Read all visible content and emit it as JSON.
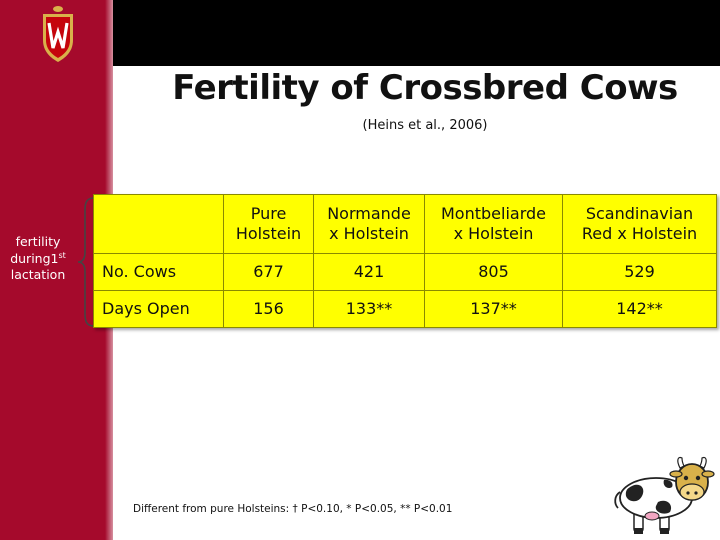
{
  "slide": {
    "title": "Fertility of Crossbred Cows",
    "subtitle": "(Heins et al., 2006)",
    "side_label": {
      "line1": "fertility",
      "line2_base": "during1",
      "line2_sup": "st",
      "line3": "lactation"
    },
    "table": {
      "headers": [
        [
          "Pure",
          "Holstein"
        ],
        [
          "Normande",
          "x Holstein"
        ],
        [
          "Montbeliarde",
          "x Holstein"
        ],
        [
          "Scandinavian",
          "Red x Holstein"
        ]
      ],
      "rows": [
        {
          "label": "No. Cows",
          "values": [
            "677",
            "421",
            "805",
            "529"
          ]
        },
        {
          "label": "Days Open",
          "values": [
            "156",
            "133**",
            "137**",
            "142**"
          ]
        }
      ]
    },
    "footnote": "Different from pure Holsteins: † P<0.10, * P<0.05, ** P<0.01"
  },
  "icons": {
    "logo": "university-crest-w-icon",
    "mascot": "cartoon-cow-icon"
  },
  "colors": {
    "sidebar": "#a50a2c",
    "topbar": "#000000",
    "table_fill": "#ffff00",
    "logo_red": "#c5050c",
    "logo_gold": "#d9b14a"
  }
}
